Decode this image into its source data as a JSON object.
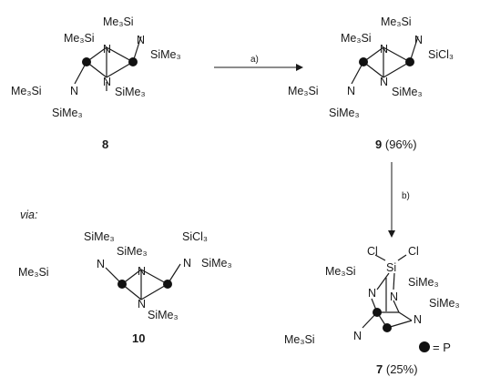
{
  "compounds": {
    "c8": {
      "label": "8"
    },
    "c9": {
      "label": "9",
      "yield": "(96%)"
    },
    "c10": {
      "label": "10"
    },
    "c7": {
      "label": "7",
      "yield": "(25%)"
    }
  },
  "arrows": {
    "a": "a)",
    "b": "b)"
  },
  "via": "via:",
  "legend": {
    "text": "= P"
  },
  "atoms": {
    "me3si": "Me₃Si",
    "sime3": "SiMe₃",
    "sicl3": "SiCl₃",
    "n": "N",
    "si": "Si",
    "cl": "Cl"
  }
}
